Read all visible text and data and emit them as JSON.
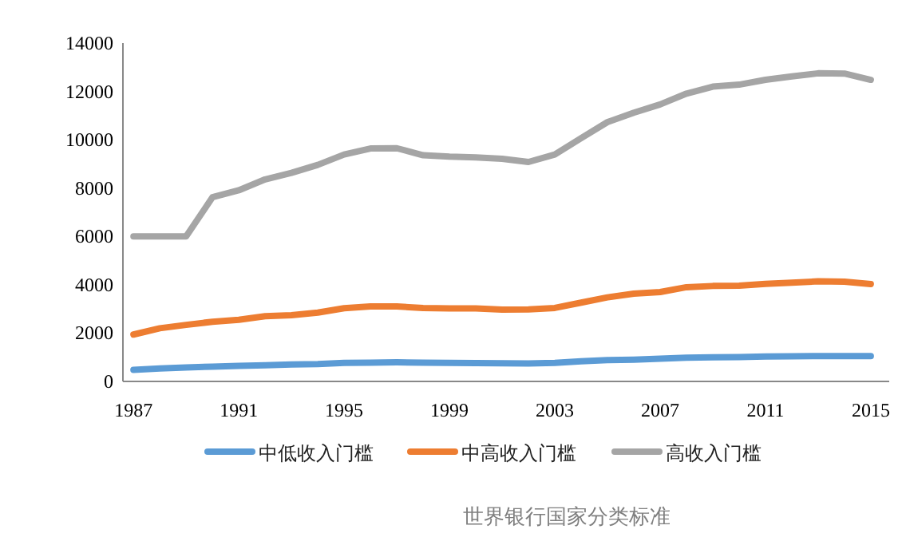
{
  "chart_data": {
    "type": "line",
    "x": [
      1987,
      1988,
      1989,
      1990,
      1991,
      1992,
      1993,
      1994,
      1995,
      1996,
      1997,
      1998,
      1999,
      2000,
      2001,
      2002,
      2003,
      2004,
      2005,
      2006,
      2007,
      2008,
      2009,
      2010,
      2011,
      2012,
      2013,
      2014,
      2015
    ],
    "xlim": [
      1986.6,
      2015.7
    ],
    "xticks": [
      1987,
      1991,
      1995,
      1999,
      2003,
      2007,
      2011,
      2015
    ],
    "ylim": [
      0,
      14000
    ],
    "yticks": [
      0,
      2000,
      4000,
      6000,
      8000,
      10000,
      12000,
      14000
    ],
    "grid": false,
    "legend": "bottom",
    "line_style": "solid",
    "annotations": [
      "世界银行国家分类标准"
    ],
    "series": [
      {
        "name": "中低收入门槛",
        "color": "#5b9bd5",
        "values": [
          480,
          540,
          580,
          610,
          640,
          670,
          700,
          720,
          770,
          780,
          790,
          780,
          770,
          760,
          750,
          740,
          770,
          830,
          880,
          900,
          940,
          980,
          1000,
          1010,
          1030,
          1040,
          1050,
          1050,
          1050
        ]
      },
      {
        "name": "中高收入门槛",
        "color": "#ed7d31",
        "values": [
          1940,
          2200,
          2340,
          2470,
          2550,
          2700,
          2740,
          2850,
          3030,
          3100,
          3100,
          3040,
          3020,
          3020,
          2970,
          2980,
          3040,
          3260,
          3480,
          3630,
          3700,
          3900,
          3950,
          3960,
          4040,
          4090,
          4140,
          4130,
          4030
        ]
      },
      {
        "name": "高收入门槛",
        "color": "#a5a5a5",
        "values": [
          6000,
          6000,
          6000,
          7620,
          7910,
          8360,
          8630,
          8960,
          9390,
          9640,
          9650,
          9360,
          9300,
          9270,
          9210,
          9080,
          9390,
          10070,
          10730,
          11120,
          11460,
          11910,
          12200,
          12280,
          12480,
          12620,
          12750,
          12740,
          12480
        ]
      }
    ]
  }
}
